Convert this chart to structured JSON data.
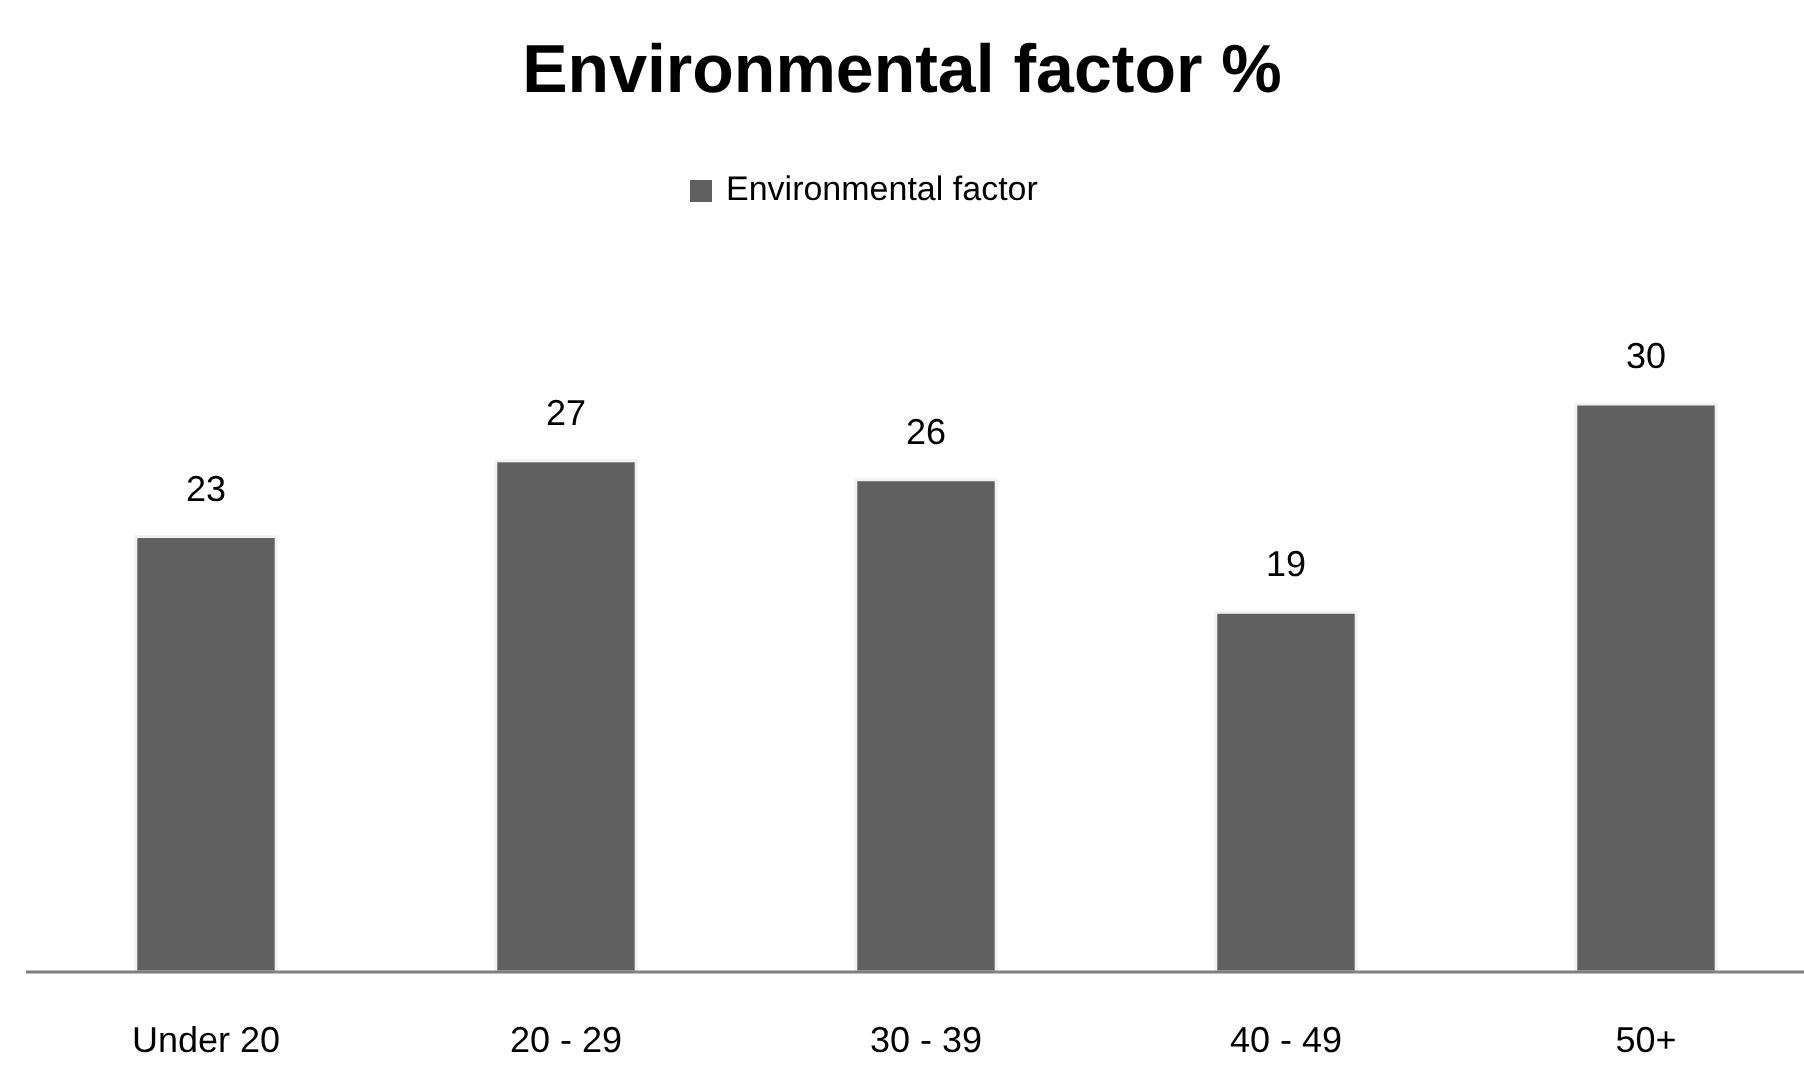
{
  "chart_data": {
    "type": "bar",
    "title": "Environmental factor %",
    "categories": [
      "Under 20",
      "20 - 29",
      "30 - 39",
      "40 - 49",
      "50+"
    ],
    "series": [
      {
        "name": "Environmental factor",
        "color": "#606060",
        "values": [
          23,
          27,
          26,
          19,
          30
        ]
      }
    ],
    "data_labels": true,
    "legend": "top"
  }
}
